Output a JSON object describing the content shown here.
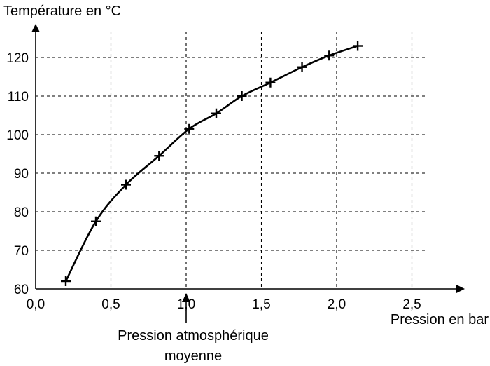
{
  "chart_data": {
    "type": "scatter",
    "title": "",
    "ylabel": "Température en °C",
    "xlabel": "Pression en bar",
    "annotation": [
      "Pression atmosphérique",
      "moyenne"
    ],
    "annotation_x": 1.0,
    "xlim": [
      0,
      2.8
    ],
    "ylim": [
      60,
      128
    ],
    "x_ticks": [
      0,
      0.5,
      1.0,
      1.5,
      2.0,
      2.5
    ],
    "x_tick_labels": [
      "0,0",
      "0,5",
      "1,0",
      "1,5",
      "2,0",
      "2,5"
    ],
    "y_ticks": [
      60,
      70,
      80,
      90,
      100,
      110,
      120
    ],
    "y_tick_labels": [
      "60",
      "70",
      "80",
      "90",
      "100",
      "110",
      "120"
    ],
    "grid": true,
    "series": [
      {
        "x": [
          0.2,
          0.4,
          0.6,
          0.82,
          1.02,
          1.2,
          1.37,
          1.56,
          1.77,
          1.95,
          2.14
        ],
        "y": [
          62,
          77.5,
          87,
          94.5,
          101.5,
          105.5,
          110,
          113.5,
          117.5,
          120.5,
          123
        ]
      }
    ]
  }
}
